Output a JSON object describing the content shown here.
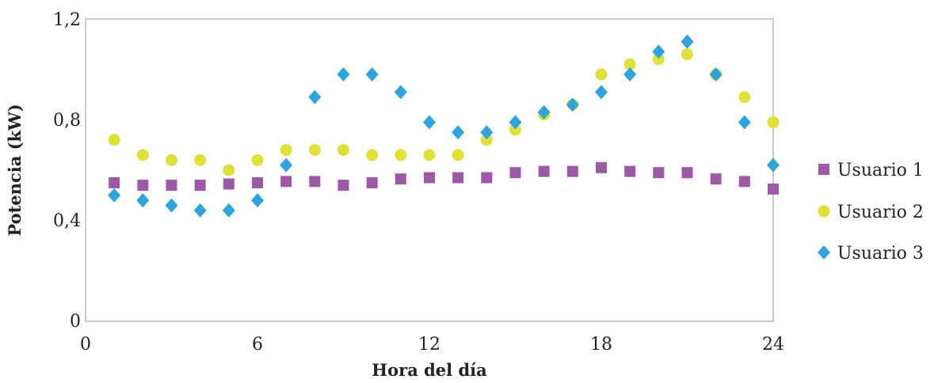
{
  "chart_data": {
    "type": "scatter",
    "title": "",
    "xlabel": "Hora del día",
    "ylabel": "Potencia (kW)",
    "xlim": [
      0,
      24
    ],
    "ylim": [
      0,
      1.2
    ],
    "x_ticks": [
      0,
      6,
      12,
      18,
      24
    ],
    "x_tick_labels": [
      "0",
      "6",
      "12",
      "18",
      "24"
    ],
    "y_ticks": [
      0,
      0.4,
      0.8,
      1.2
    ],
    "y_tick_labels": [
      "0",
      "0,4",
      "0,8",
      "1,2"
    ],
    "grid": false,
    "legend_position": "right",
    "x": [
      1,
      2,
      3,
      4,
      5,
      6,
      7,
      8,
      9,
      10,
      11,
      12,
      13,
      14,
      15,
      16,
      17,
      18,
      19,
      20,
      21,
      22,
      23,
      24
    ],
    "series": [
      {
        "name": "Usuario 1",
        "marker": "square",
        "color": "#9b59a6",
        "values": [
          0.55,
          0.54,
          0.54,
          0.54,
          0.545,
          0.55,
          0.555,
          0.555,
          0.54,
          0.55,
          0.565,
          0.57,
          0.57,
          0.57,
          0.59,
          0.595,
          0.595,
          0.61,
          0.595,
          0.59,
          0.59,
          0.565,
          0.555,
          0.525
        ]
      },
      {
        "name": "Usuario 2",
        "marker": "circle",
        "color": "#dfe03a",
        "values": [
          0.72,
          0.66,
          0.64,
          0.64,
          0.6,
          0.64,
          0.68,
          0.68,
          0.68,
          0.66,
          0.66,
          0.66,
          0.66,
          0.72,
          0.76,
          0.82,
          0.86,
          0.98,
          1.02,
          1.04,
          1.06,
          0.98,
          0.89,
          0.79
        ]
      },
      {
        "name": "Usuario 3",
        "marker": "diamond",
        "color": "#2ea3dc",
        "values": [
          0.5,
          0.48,
          0.46,
          0.44,
          0.44,
          0.48,
          0.62,
          0.89,
          0.98,
          0.98,
          0.91,
          0.79,
          0.75,
          0.75,
          0.79,
          0.83,
          0.86,
          0.91,
          0.98,
          1.07,
          1.11,
          0.98,
          0.79,
          0.62
        ]
      }
    ]
  }
}
